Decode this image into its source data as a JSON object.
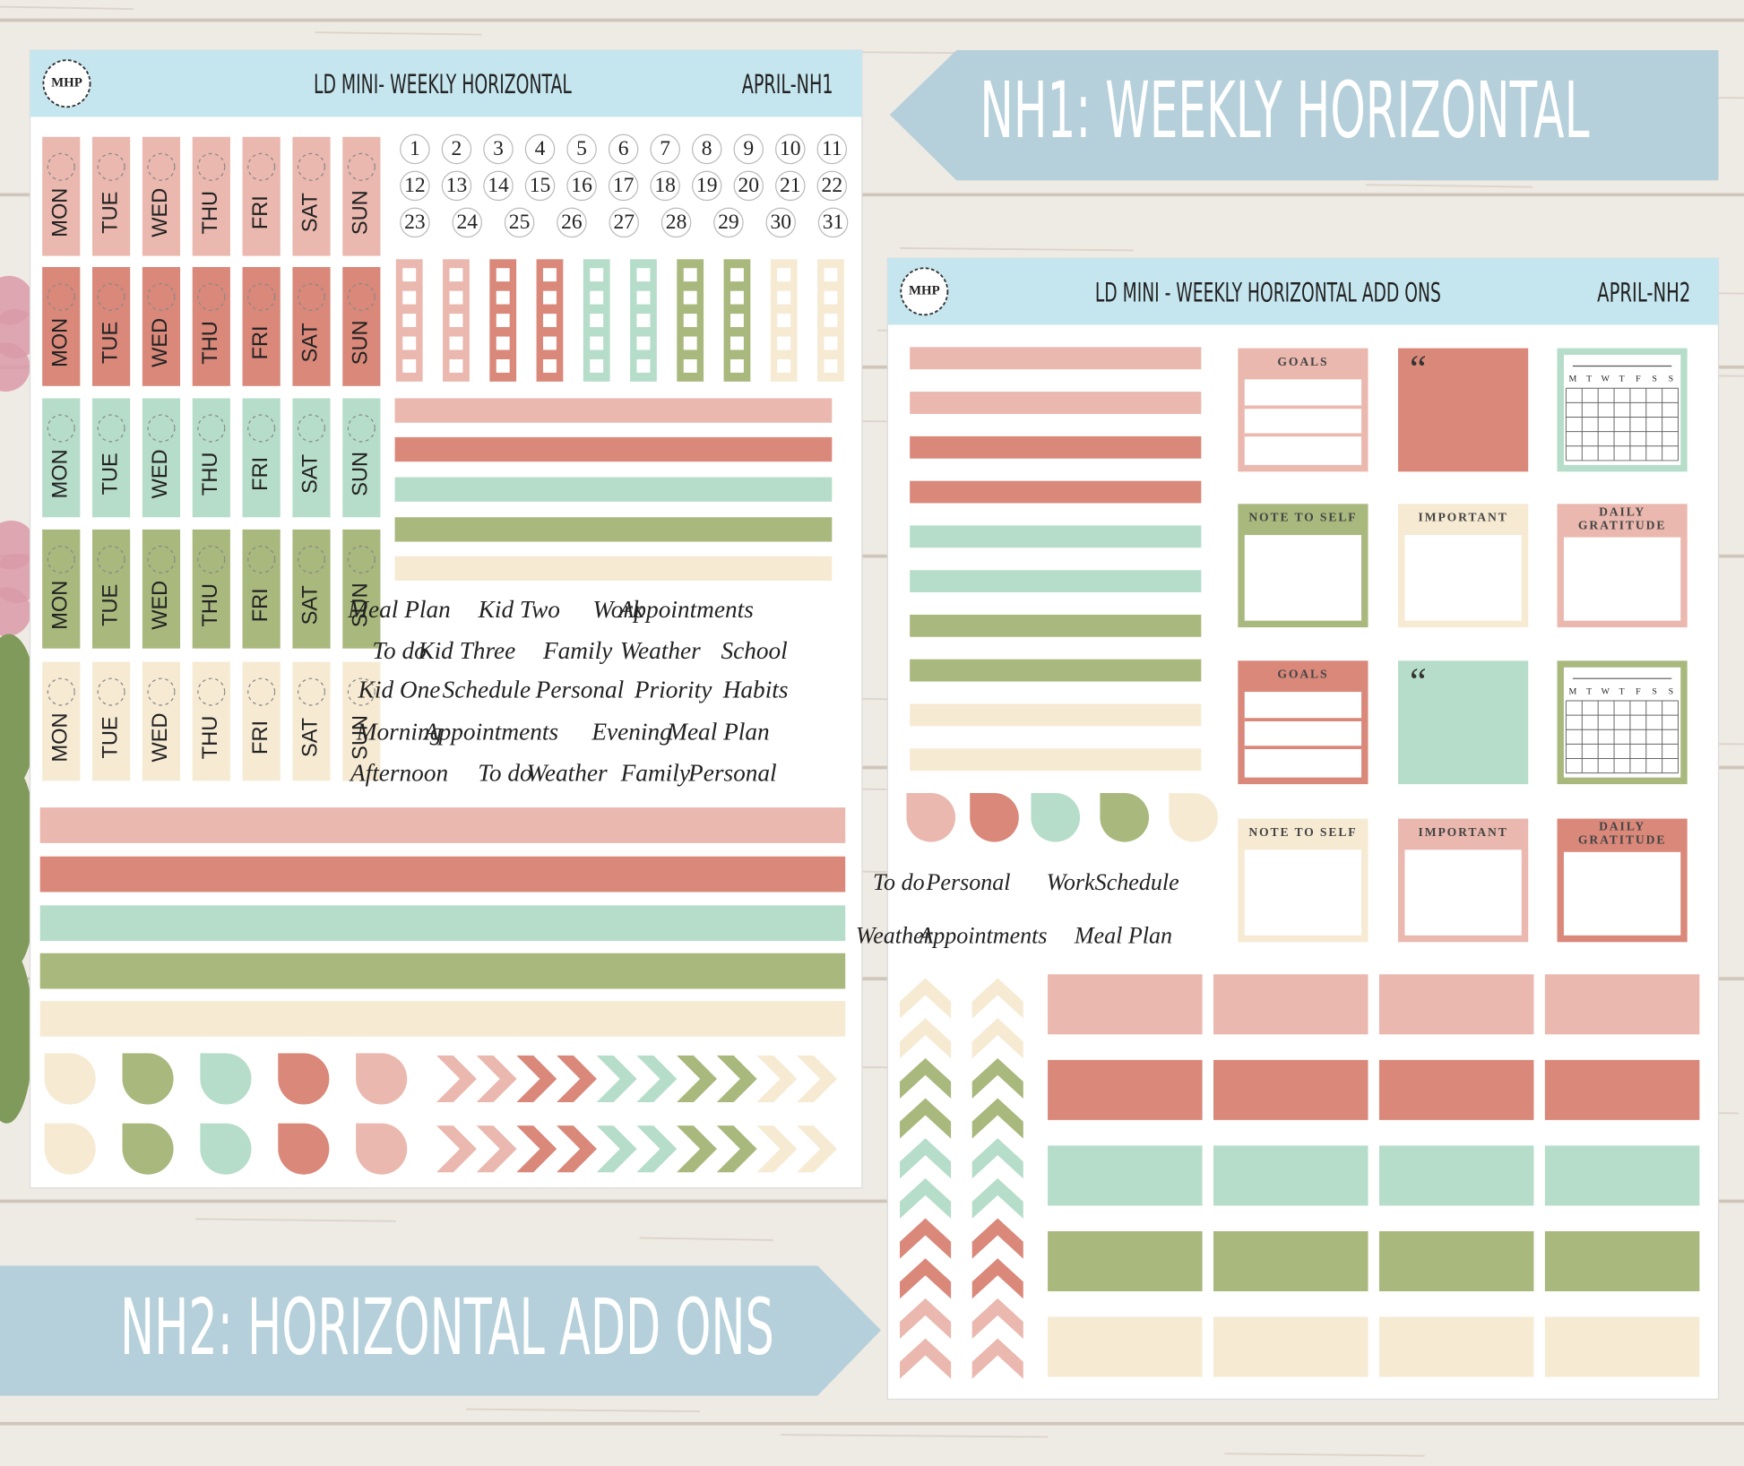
{
  "banners": {
    "nh1": "NH1: WEEKLY HORIZONTAL",
    "nh2": "NH2: HORIZONTAL ADD ONS"
  },
  "sheet1": {
    "logo": "MHP",
    "title": "LD MINI- WEEKLY HORIZONTAL",
    "code": "APRIL-NH1",
    "days": [
      "MON",
      "TUE",
      "WED",
      "THU",
      "FRI",
      "SAT",
      "SUN"
    ],
    "dates": [
      [
        1,
        2,
        3,
        4,
        5,
        6,
        7,
        8,
        9,
        10,
        11
      ],
      [
        12,
        13,
        14,
        15,
        16,
        17,
        18,
        19,
        20,
        21,
        22
      ],
      [
        23,
        24,
        25,
        26,
        27,
        28,
        29,
        30,
        31
      ]
    ],
    "words": [
      [
        "Meal Plan",
        "Kid Two",
        "Work",
        "Appointments"
      ],
      [
        "To do",
        "Kid Three",
        "Family",
        "Weather",
        "School"
      ],
      [
        "Kid One",
        "Schedule",
        "Personal",
        "Priority",
        "Habits"
      ],
      [
        "Morning",
        "Appointments",
        "Evening",
        "Meal Plan"
      ],
      [
        "Afternoon",
        "To do",
        "Weather",
        "Family",
        "Personal"
      ]
    ]
  },
  "sheet2": {
    "logo": "MHP",
    "title": "LD MINI - WEEKLY HORIZONTAL ADD ONS",
    "code": "APRIL-NH2",
    "labels": {
      "goals": "GOALS",
      "note": "NOTE TO SELF",
      "important": "IMPORTANT",
      "gratitude": [
        "DAILY",
        "GRATITUDE"
      ],
      "quote": "“",
      "calendar_days": [
        "M",
        "T",
        "W",
        "T",
        "F",
        "S",
        "S"
      ]
    },
    "words": [
      [
        "To do",
        "Personal",
        "Work",
        "Schedule"
      ],
      [
        "Weather",
        "Appointments",
        "Meal Plan"
      ]
    ]
  }
}
